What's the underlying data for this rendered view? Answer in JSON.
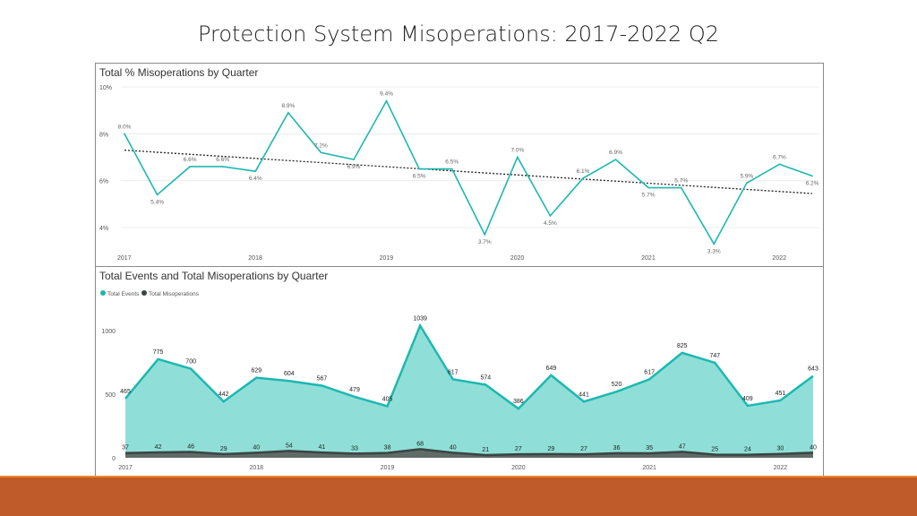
{
  "slide": {
    "title": "Protection System Misoperations:  2017-2022 Q2"
  },
  "colors": {
    "teal": "#1db8b0",
    "area": "#8fdfd8",
    "dark": "#3a4441",
    "trend": "#222222",
    "footer": "#bf5a2a",
    "footer_accent": "#e98a2e"
  },
  "chart_data": [
    {
      "type": "line",
      "title": "Total % Misoperations by Quarter",
      "y_ticks": [
        "4%",
        "6%",
        "8%",
        "10%"
      ],
      "ylim": [
        3,
        10
      ],
      "x_ticks": [
        "2017",
        "2018",
        "2019",
        "2020",
        "2021",
        "2022"
      ],
      "series": [
        {
          "values": [
            8.0,
            5.4,
            6.6,
            6.6,
            6.4,
            8.9,
            7.2,
            6.9,
            9.4,
            6.5,
            6.5,
            3.7,
            7.0,
            4.5,
            6.1,
            6.9,
            5.7,
            5.7,
            3.3,
            5.9,
            6.7,
            6.2
          ],
          "labels": [
            "8.0%",
            "5.4%",
            "6.6%",
            "6.6%",
            "6.4%",
            "8.9%",
            "7.2%",
            "6.9%",
            "9.4%",
            "6.5%",
            "6.5%",
            "3.7%",
            "7.0%",
            "4.5%",
            "6.1%",
            "6.9%",
            "5.7%",
            "5.7%",
            "3.3%",
            "5.9%",
            "6.7%",
            "6.2%"
          ]
        }
      ],
      "trendline": {
        "start": 7.3,
        "end": 5.45,
        "style": "dotted"
      },
      "grid": true
    },
    {
      "type": "area",
      "title": "Total Events and Total Misoperations by Quarter",
      "legend": [
        "Total Events",
        "Total Misoperations"
      ],
      "legend_position": "top-left",
      "y_ticks": [
        "0",
        "500",
        "1000"
      ],
      "ylim": [
        0,
        1100
      ],
      "x_ticks": [
        "2017",
        "2018",
        "2019",
        "2020",
        "2021",
        "2022"
      ],
      "series": [
        {
          "name": "Total Events",
          "values": [
            465,
            775,
            700,
            442,
            629,
            604,
            567,
            479,
            405,
            1039,
            617,
            574,
            386,
            649,
            441,
            520,
            617,
            825,
            747,
            409,
            451,
            643
          ]
        },
        {
          "name": "Total Misoperations",
          "values": [
            37,
            42,
            46,
            29,
            40,
            54,
            41,
            33,
            38,
            68,
            40,
            21,
            27,
            29,
            27,
            36,
            35,
            47,
            25,
            24,
            30,
            40
          ]
        }
      ]
    }
  ]
}
